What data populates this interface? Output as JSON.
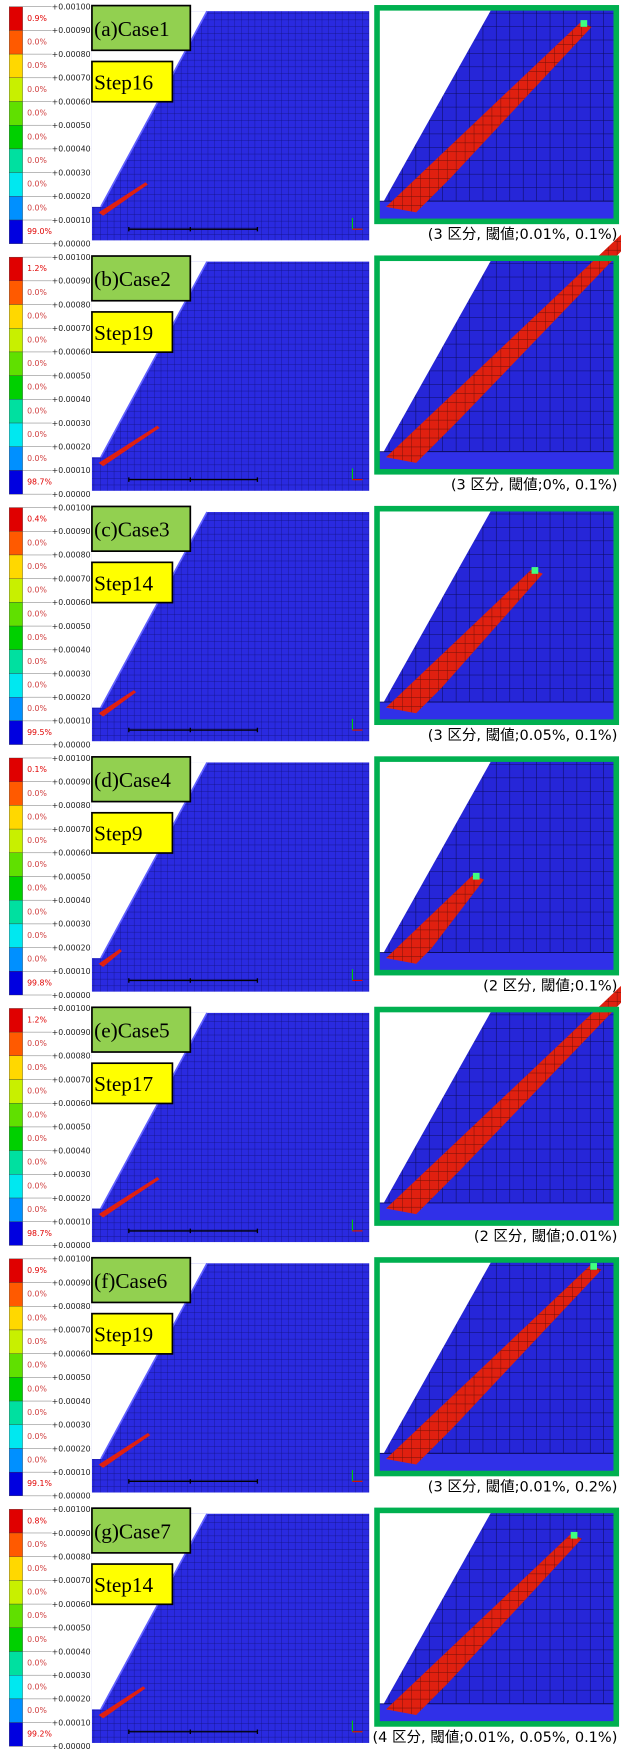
{
  "legend_ticks": [
    "+0.00100",
    "+0.00090",
    "+0.00080",
    "+0.00070",
    "+0.00060",
    "+0.00050",
    "+0.00040",
    "+0.00030",
    "+0.00020",
    "+0.00010",
    "+0.00000"
  ],
  "panels": [
    {
      "label": "(a)Case1",
      "step": "Step16",
      "caption": "(3 区分, 閾値;0.01%, 0.1%)",
      "legend_values": [
        "0.9%",
        "0.0%",
        "0.0%",
        "0.0%",
        "0.0%",
        "0.0%",
        "0.0%",
        "0.0%",
        "0.0%",
        "99.0%"
      ]
    },
    {
      "label": "(b)Case2",
      "step": "Step19",
      "caption": "(3 区分, 閾値;0%, 0.1%)",
      "legend_values": [
        "1.2%",
        "0.0%",
        "0.0%",
        "0.0%",
        "0.0%",
        "0.0%",
        "0.0%",
        "0.0%",
        "0.0%",
        "98.7%"
      ]
    },
    {
      "label": "(c)Case3",
      "step": "Step14",
      "caption": "(3 区分, 閾値;0.05%, 0.1%)",
      "legend_values": [
        "0.4%",
        "0.0%",
        "0.0%",
        "0.0%",
        "0.0%",
        "0.0%",
        "0.0%",
        "0.0%",
        "0.0%",
        "99.5%"
      ]
    },
    {
      "label": "(d)Case4",
      "step": "Step9",
      "caption": "(2 区分, 閾値;0.1%)",
      "legend_values": [
        "0.1%",
        "0.0%",
        "0.0%",
        "0.0%",
        "0.0%",
        "0.0%",
        "0.0%",
        "0.0%",
        "0.0%",
        "99.8%"
      ]
    },
    {
      "label": "(e)Case5",
      "step": "Step17",
      "caption": "(2 区分, 閾値;0.01%)",
      "legend_values": [
        "1.2%",
        "0.0%",
        "0.0%",
        "0.0%",
        "0.0%",
        "0.0%",
        "0.0%",
        "0.0%",
        "0.0%",
        "98.7%"
      ]
    },
    {
      "label": "(f)Case6",
      "step": "Step19",
      "caption": "(3 区分, 閾値;0.01%, 0.2%)",
      "legend_values": [
        "0.9%",
        "0.0%",
        "0.0%",
        "0.0%",
        "0.0%",
        "0.0%",
        "0.0%",
        "0.0%",
        "0.0%",
        "99.1%"
      ]
    },
    {
      "label": "(g)Case7",
      "step": "Step14",
      "caption": "(4 区分, 閾値;0.01%, 0.05%, 0.1%)",
      "legend_values": [
        "0.8%",
        "0.0%",
        "0.0%",
        "0.0%",
        "0.0%",
        "0.0%",
        "0.0%",
        "0.0%",
        "0.0%",
        "99.2%"
      ]
    }
  ]
}
